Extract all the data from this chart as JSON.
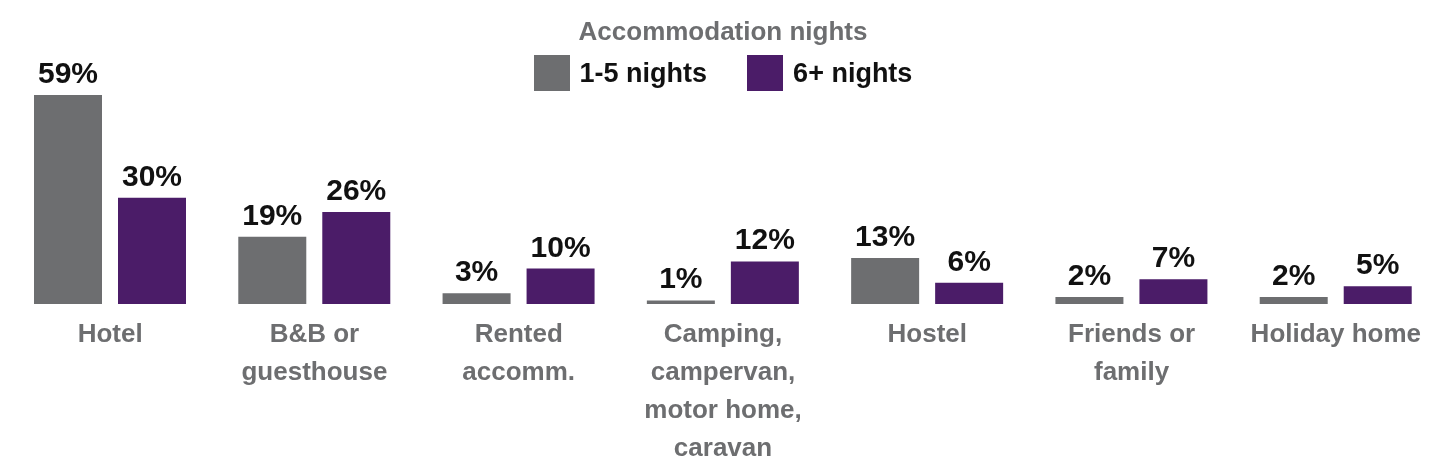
{
  "chart_data": {
    "type": "bar",
    "legend_title": "Accommodation nights",
    "legend": "top",
    "categories": [
      "Hotel",
      "B&B or guesthouse",
      "Rented accomm.",
      "Camping, campervan, motor home, caravan",
      "Hostel",
      "Friends or family",
      "Holiday home"
    ],
    "series": [
      {
        "name": "1-5 nights",
        "color": "#6d6e70",
        "values": [
          59,
          19,
          3,
          1,
          13,
          2,
          2
        ],
        "value_labels": [
          "59%",
          "19%",
          "3%",
          "1%",
          "13%",
          "2%",
          "2%"
        ]
      },
      {
        "name": "6+ nights",
        "color": "#4b1c68",
        "values": [
          30,
          26,
          10,
          12,
          6,
          7,
          5
        ],
        "value_labels": [
          "30%",
          "26%",
          "10%",
          "12%",
          "6%",
          "7%",
          "5%"
        ]
      }
    ]
  }
}
